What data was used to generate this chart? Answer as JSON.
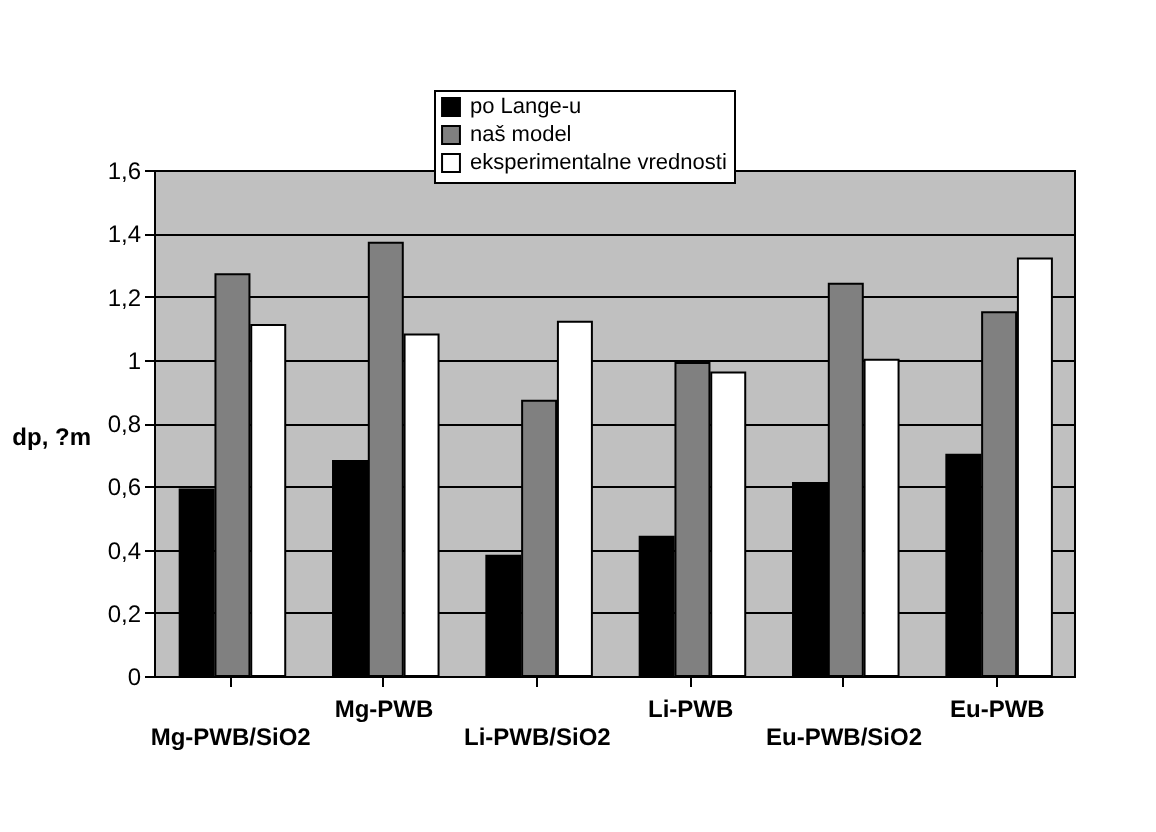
{
  "chart_data": {
    "type": "bar",
    "ylabel": "dp, ?m",
    "categories": [
      "Mg-PWB/SiO2",
      "Mg-PWB",
      "Li-PWB/SiO2",
      "Li-PWB",
      "Eu-PWB/SiO2",
      "Eu-PWB"
    ],
    "series": [
      {
        "name": "po Lange-u",
        "color": "#000000",
        "values": [
          0.59,
          0.68,
          0.38,
          0.44,
          0.61,
          0.7
        ]
      },
      {
        "name": "naš model",
        "color": "#808080",
        "values": [
          1.27,
          1.37,
          0.87,
          0.99,
          1.24,
          1.15
        ]
      },
      {
        "name": "eksperimentalne vrednosti",
        "color": "#ffffff",
        "values": [
          1.11,
          1.08,
          1.12,
          0.96,
          1.0,
          1.32
        ]
      }
    ],
    "ylim": [
      0,
      1.6
    ],
    "yticks": [
      0,
      {
        "value": 0.2,
        "label": "0,2"
      },
      {
        "value": 0.4,
        "label": "0,4"
      },
      {
        "value": 0.6,
        "label": "0,6"
      },
      {
        "value": 0.8,
        "label": "0,8"
      },
      1,
      {
        "value": 1.2,
        "label": "1,2"
      },
      {
        "value": 1.4,
        "label": "1,4"
      },
      {
        "value": 1.6,
        "label": "1,6"
      }
    ],
    "grid": "y",
    "legend": "top right"
  }
}
